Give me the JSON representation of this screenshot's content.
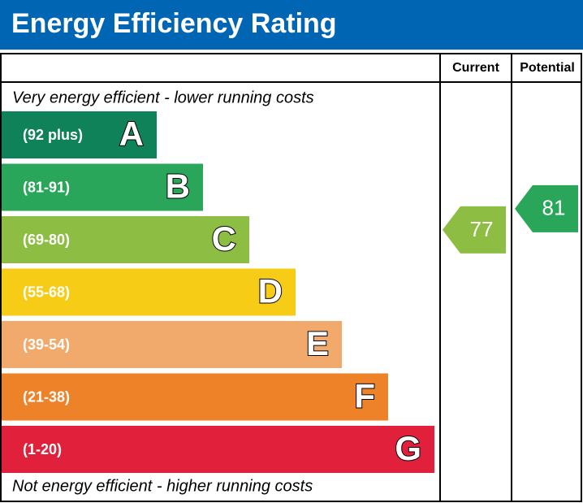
{
  "header": {
    "title": "Energy Efficiency Rating"
  },
  "columns": [
    "Current",
    "Potential"
  ],
  "top_note": "Very energy efficient - lower running costs",
  "bottom_note": "Not energy efficient - higher running costs",
  "bands": [
    {
      "range": "(92 plus)",
      "letter": "A",
      "color": "#10825a"
    },
    {
      "range": "(81-91)",
      "letter": "B",
      "color": "#2aa65b"
    },
    {
      "range": "(69-80)",
      "letter": "C",
      "color": "#8dbe43"
    },
    {
      "range": "(55-68)",
      "letter": "D",
      "color": "#f6cc17"
    },
    {
      "range": "(39-54)",
      "letter": "E",
      "color": "#f1aa6b"
    },
    {
      "range": "(21-38)",
      "letter": "F",
      "color": "#ed8229"
    },
    {
      "range": "(1-20)",
      "letter": "G",
      "color": "#e1213c"
    }
  ],
  "ratings": [
    {
      "value": 77
    },
    {
      "value": 81
    }
  ]
}
